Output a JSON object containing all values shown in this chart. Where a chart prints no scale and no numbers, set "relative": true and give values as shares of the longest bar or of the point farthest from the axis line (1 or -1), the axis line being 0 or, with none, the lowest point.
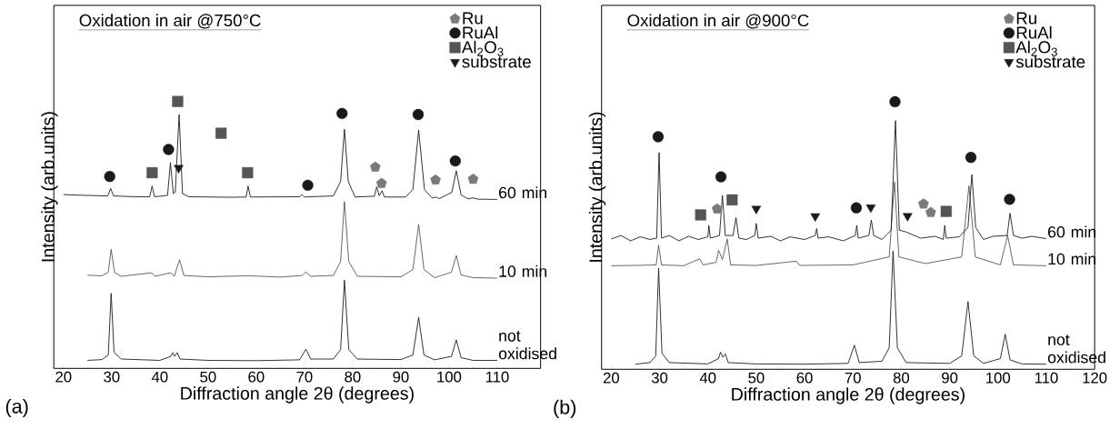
{
  "chart_data": [
    {
      "type": "line",
      "title": "Oxidation in air @750°C",
      "xlabel": "Diffraction angle 2θ (degrees)",
      "ylabel": "Intensity (arb.units)",
      "relative": true,
      "xlim": [
        18,
        119
      ],
      "xticks": [
        20,
        30,
        40,
        50,
        60,
        70,
        80,
        90,
        100,
        110
      ],
      "legend": "top right",
      "annotations": [
        "(a)"
      ],
      "series": [
        {
          "name": "not oxidised",
          "color": "#1a1a1a",
          "x": [
            25,
            28,
            29.3,
            29.9,
            30.5,
            32,
            40,
            42.3,
            42.7,
            43.1,
            43.6,
            44.2,
            50,
            60,
            69,
            70.3,
            71.3,
            76,
            77.5,
            78.3,
            79.2,
            81,
            90,
            92.5,
            93.7,
            94.8,
            97,
            100.5,
            101.5,
            102.5,
            105,
            110
          ],
          "values": [
            0.03,
            0.033,
            0.05,
            0.281,
            0.06,
            0.035,
            0.03,
            0.045,
            0.059,
            0.045,
            0.059,
            0.035,
            0.03,
            0.029,
            0.032,
            0.072,
            0.035,
            0.035,
            0.07,
            0.33,
            0.07,
            0.035,
            0.033,
            0.05,
            0.191,
            0.05,
            0.032,
            0.045,
            0.107,
            0.04,
            0.03,
            0.03
          ]
        },
        {
          "name": "10 min",
          "color": "#555555",
          "x": [
            25,
            28,
            29.3,
            29.9,
            30.6,
            32,
            38.3,
            39,
            42.2,
            43,
            44.1,
            45,
            50,
            58.3,
            65,
            69.5,
            70.3,
            71.3,
            76,
            77.5,
            78.3,
            79.2,
            81,
            90,
            92.5,
            93.7,
            94.8,
            97,
            100.5,
            101.5,
            102.5,
            105,
            110
          ],
          "values": [
            0.349,
            0.347,
            0.36,
            0.446,
            0.36,
            0.345,
            0.358,
            0.345,
            0.358,
            0.345,
            0.407,
            0.348,
            0.343,
            0.347,
            0.342,
            0.348,
            0.361,
            0.345,
            0.348,
            0.4,
            0.625,
            0.4,
            0.345,
            0.343,
            0.37,
            0.539,
            0.37,
            0.34,
            0.36,
            0.423,
            0.35,
            0.34,
            0.338
          ]
        },
        {
          "name": "60 min",
          "color": "#1a1a1a",
          "x": [
            20,
            25,
            29.2,
            29.8,
            30.4,
            35,
            37.9,
            38.4,
            38.9,
            41.6,
            42.2,
            42.8,
            43.2,
            44,
            44.7,
            46,
            55,
            57.9,
            58.3,
            58.8,
            69,
            69.5,
            70,
            76,
            77.5,
            78.3,
            79.1,
            80.5,
            84.5,
            85,
            85.5,
            86.1,
            86.6,
            91,
            92.5,
            93.7,
            94.9,
            96.5,
            97.3,
            98,
            100.6,
            101.5,
            102.5,
            104,
            104.9,
            106,
            110
          ],
          "values": [
            0.651,
            0.648,
            0.646,
            0.674,
            0.646,
            0.643,
            0.643,
            0.683,
            0.643,
            0.648,
            0.771,
            0.655,
            0.66,
            0.951,
            0.655,
            0.643,
            0.641,
            0.642,
            0.683,
            0.642,
            0.643,
            0.651,
            0.642,
            0.646,
            0.7,
            0.896,
            0.7,
            0.642,
            0.645,
            0.68,
            0.647,
            0.665,
            0.642,
            0.642,
            0.67,
            0.893,
            0.67,
            0.638,
            0.642,
            0.636,
            0.66,
            0.741,
            0.65,
            0.635,
            0.639,
            0.634,
            0.633
          ]
        },
        {
          "name": "Ru",
          "type": "scatter",
          "color": "#7a7a7a",
          "x": [
            84.7,
            86.0,
            97.2,
            105.0
          ],
          "values": [
            0.754,
            0.693,
            0.706,
            0.709
          ]
        },
        {
          "name": "RuAl",
          "type": "scatter",
          "marker": "circle",
          "color": "#1a1a1a",
          "x": [
            29.6,
            41.8,
            70.7,
            77.8,
            93.6,
            101.3
          ],
          "values": [
            0.719,
            0.82,
            0.686,
            0.955,
            0.951,
            0.777
          ]
        },
        {
          "name": "Al$_{2}$O$_{3}$",
          "type": "scatter",
          "marker": "square",
          "color": "#555555",
          "x": [
            38.4,
            43.7,
            52.7,
            58.2
          ],
          "values": [
            0.733,
            1.0,
            0.881,
            0.733
          ]
        },
        {
          "name": "substrate",
          "type": "scatter",
          "marker": "triangle",
          "color": "#1a1a1a",
          "x": [
            43.9
          ],
          "values": [
            0.751
          ]
        }
      ]
    },
    {
      "type": "line",
      "title": "Oxidation in air @900°C",
      "xlabel": "Diffraction angle 2θ (degrees)",
      "ylabel": "Intensity (arb.units)",
      "relative": true,
      "xlim": [
        18,
        120
      ],
      "xticks": [
        20,
        30,
        40,
        50,
        60,
        70,
        80,
        90,
        100,
        110,
        120
      ],
      "legend": "top right",
      "annotations": [
        "(b)"
      ],
      "series": [
        {
          "name": "not oxidised",
          "color": "#1a1a1a",
          "x": [
            25,
            28,
            29.2,
            29.8,
            30.5,
            32,
            40,
            42.2,
            42.6,
            43.1,
            43.6,
            44.2,
            50,
            60,
            69,
            70.3,
            71.3,
            76,
            77.5,
            78.3,
            79.2,
            81,
            90,
            92.5,
            93.8,
            95,
            97,
            100.5,
            101.5,
            102.5,
            105,
            110
          ],
          "values": [
            0.019,
            0.025,
            0.05,
            0.378,
            0.06,
            0.025,
            0.02,
            0.04,
            0.064,
            0.045,
            0.058,
            0.025,
            0.02,
            0.019,
            0.022,
            0.09,
            0.025,
            0.03,
            0.08,
            0.442,
            0.08,
            0.025,
            0.022,
            0.05,
            0.253,
            0.05,
            0.022,
            0.04,
            0.131,
            0.035,
            0.02,
            0.019
          ]
        },
        {
          "name": "10 min",
          "color": "#555555",
          "x": [
            20,
            25,
            29.3,
            29.8,
            30.4,
            35,
            38.3,
            39,
            41.7,
            42.2,
            43,
            44,
            44.7,
            50,
            58.3,
            59,
            70,
            77.5,
            78.6,
            79.5,
            85,
            92.5,
            94,
            95.3,
            100.5,
            102,
            103.2,
            110
          ],
          "values": [
            0.387,
            0.388,
            0.39,
            0.464,
            0.39,
            0.387,
            0.413,
            0.39,
            0.4,
            0.445,
            0.41,
            0.487,
            0.39,
            0.388,
            0.404,
            0.388,
            0.39,
            0.42,
            0.7,
            0.42,
            0.395,
            0.42,
            0.686,
            0.42,
            0.39,
            0.5,
            0.39,
            0.387
          ]
        },
        {
          "name": "60 min",
          "color": "#1a1a1a",
          "x": [
            20,
            22,
            24,
            26,
            28,
            29.4,
            29.9,
            30.4,
            32,
            34,
            36,
            38,
            40,
            40.2,
            40.5,
            42.4,
            43,
            43.6,
            45.2,
            45.8,
            46.4,
            48,
            49.7,
            50,
            50.4,
            53,
            55,
            57,
            60,
            62.2,
            62.5,
            62.8,
            65,
            68,
            70.5,
            70.8,
            71.1,
            73.3,
            73.8,
            74.3,
            76,
            77.9,
            78.8,
            79.6,
            81,
            84,
            87,
            88.7,
            89,
            89.3,
            92,
            93.8,
            94.6,
            95.4,
            97,
            99,
            101.9,
            102.5,
            103.2,
            105,
            107,
            110
          ],
          "values": [
            0.487,
            0.5,
            0.48,
            0.495,
            0.485,
            0.49,
            0.81,
            0.49,
            0.5,
            0.48,
            0.497,
            0.485,
            0.495,
            0.538,
            0.49,
            0.5,
            0.65,
            0.5,
            0.5,
            0.567,
            0.49,
            0.485,
            0.5,
            0.545,
            0.49,
            0.497,
            0.48,
            0.495,
            0.485,
            0.5,
            0.526,
            0.49,
            0.495,
            0.48,
            0.5,
            0.538,
            0.49,
            0.5,
            0.558,
            0.5,
            0.485,
            0.52,
            0.929,
            0.52,
            0.513,
            0.49,
            0.497,
            0.485,
            0.538,
            0.49,
            0.495,
            0.53,
            0.728,
            0.53,
            0.485,
            0.497,
            0.5,
            0.583,
            0.5,
            0.49,
            0.497,
            0.488
          ]
        },
        {
          "name": "Ru",
          "type": "scatter",
          "color": "#7a7a7a",
          "x": [
            41.9,
            84.6,
            86.1
          ],
          "values": [
            0.599,
            0.618,
            0.586
          ]
        },
        {
          "name": "RuAl",
          "type": "scatter",
          "marker": "circle",
          "color": "#1a1a1a",
          "x": [
            29.7,
            42.7,
            70.7,
            78.7,
            94.4,
            102.4
          ],
          "values": [
            0.869,
            0.719,
            0.603,
            1.0,
            0.792,
            0.635
          ]
        },
        {
          "name": "Al$_{2}$O$_{3}$",
          "type": "scatter",
          "marker": "square",
          "color": "#555555",
          "x": [
            38.5,
            45.0,
            89.3
          ],
          "values": [
            0.577,
            0.633,
            0.59
          ]
        },
        {
          "name": "substrate",
          "type": "scatter",
          "marker": "triangle",
          "color": "#1a1a1a",
          "x": [
            50.0,
            62.2,
            73.7,
            81.3
          ],
          "values": [
            0.6,
            0.572,
            0.605,
            0.573
          ]
        }
      ]
    }
  ]
}
